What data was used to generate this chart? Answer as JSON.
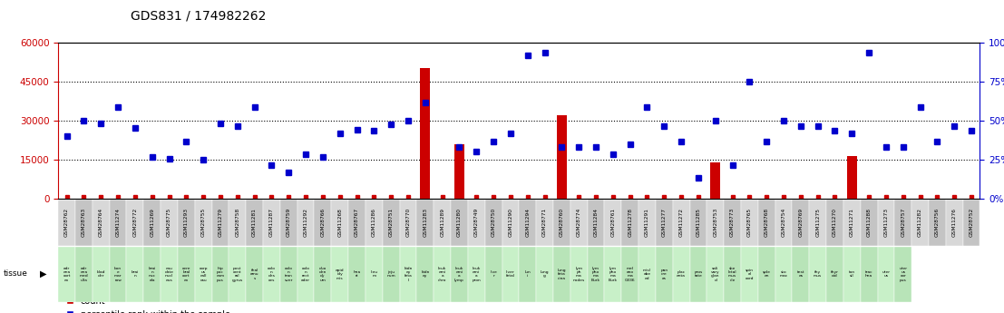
{
  "title": "GDS831 / 174982262",
  "samples": [
    "GSM28762",
    "GSM28763",
    "GSM28764",
    "GSM11274",
    "GSM28772",
    "GSM11269",
    "GSM28775",
    "GSM11293",
    "GSM28755",
    "GSM11279",
    "GSM28758",
    "GSM11281",
    "GSM11287",
    "GSM28759",
    "GSM11292",
    "GSM28766",
    "GSM11268",
    "GSM28767",
    "GSM11286",
    "GSM28751",
    "GSM28770",
    "GSM11283",
    "GSM11289",
    "GSM11280",
    "GSM28749",
    "GSM28750",
    "GSM11290",
    "GSM11294",
    "GSM28771",
    "GSM28760",
    "GSM28774",
    "GSM11284",
    "GSM28761",
    "GSM11278",
    "GSM11291",
    "GSM11277",
    "GSM11272",
    "GSM11285",
    "GSM28753",
    "GSM28773",
    "GSM28765",
    "GSM28768",
    "GSM28754",
    "GSM28769",
    "GSM11275",
    "GSM11270",
    "GSM11271",
    "GSM11288",
    "GSM11273",
    "GSM28757",
    "GSM11282",
    "GSM28756",
    "GSM11276",
    "GSM28752"
  ],
  "tissues": [
    "adr\nena\ncort\nex",
    "adr\nena\nmed\nulla",
    "blad\nder",
    "bon\ne\nmar\nrow",
    "brai\nn",
    "brai\nn\nnuc\nala",
    "cau\ndate\nnucl\neus",
    "cere\nbral\ncort\nex",
    "corp\nus\ncall\nosu",
    "hip\npoc\ncam\npus",
    "post\ncent\nral\ngyrus",
    "thal\namu\ns",
    "colo\nn\ndes\nces",
    "colo\nn\ntran\nsver",
    "colo\nn\nrect\nader",
    "duo\nden\ndy\num",
    "epid\nidy\nmis",
    "hea\nrt",
    "lieu\nm",
    "jeju\nnum",
    "kidn\ney\nfeta\nl",
    "kidn\ney",
    "leuk\nemi\na\nchro",
    "leuk\nemi\na\nlymp",
    "leuk\nemi\na\npron",
    "live\nr",
    "liver\nfetal",
    "lun\ni",
    "lung\ng",
    "lung\nfeta\ncina",
    "lym\nph\nma\nnodes",
    "lym\npho\nma\nBurk",
    "lym\npho\nma\nBurk",
    "mel\nano\nma\nG336",
    "misl\nabe\ned",
    "pan\ncre\nas",
    "plac\nenta",
    "pros\ntate",
    "sali\nvary\nglan\nd",
    "ske\nletal\nmus\ncle",
    "spin\nal\ncord",
    "sple\nen",
    "sto\nmac",
    "test\nes",
    "thy\nmus",
    "thyr\noid",
    "ton\nsil",
    "trac\nhea",
    "uter\nus",
    "uter\nus\ncor\npus"
  ],
  "red_bar_values": [
    0,
    0,
    0,
    0,
    0,
    0,
    0,
    0,
    0,
    0,
    0,
    0,
    0,
    0,
    0,
    0,
    0,
    0,
    0,
    0,
    0,
    50000,
    0,
    21000,
    0,
    0,
    0,
    0,
    0,
    32000,
    0,
    0,
    0,
    0,
    0,
    0,
    0,
    0,
    14000,
    0,
    0,
    0,
    0,
    0,
    0,
    0,
    16500,
    0,
    0,
    0,
    0,
    0,
    0,
    0
  ],
  "percentile_values": [
    24000,
    30000,
    29000,
    35000,
    27000,
    16000,
    15500,
    22000,
    15000,
    29000,
    28000,
    35000,
    13000,
    10000,
    17000,
    16000,
    25000,
    26500,
    26000,
    28500,
    30000,
    37000,
    null,
    20000,
    18000,
    22000,
    25000,
    55000,
    56000,
    20000,
    20000,
    20000,
    17000,
    21000,
    35000,
    28000,
    22000,
    8000,
    30000,
    13000,
    45000,
    22000,
    30000,
    28000,
    28000,
    26000,
    25000,
    56000,
    20000,
    20000,
    35000,
    22000,
    28000,
    26000
  ],
  "ylim_left": [
    0,
    60000
  ],
  "ylim_right": [
    0,
    100
  ],
  "yticks_left": [
    0,
    15000,
    30000,
    45000,
    60000
  ],
  "yticks_right": [
    0,
    25,
    50,
    75,
    100
  ],
  "gridlines": [
    15000,
    30000,
    45000
  ],
  "left_axis_color": "#cc0000",
  "right_axis_color": "#0000cc",
  "bar_color": "#cc0000",
  "dot_color": "#0000cc",
  "count_color": "#cc0000",
  "bg_color": "#ffffff"
}
